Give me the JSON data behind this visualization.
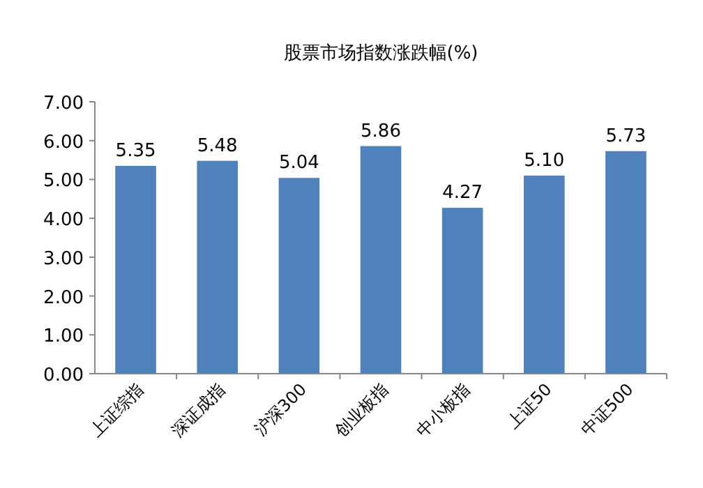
{
  "chart_data": {
    "type": "bar",
    "title": "股票市场指数涨跌幅(%)",
    "categories": [
      "上证综指",
      "深证成指",
      "沪深300",
      "创业板指",
      "中小板指",
      "上证50",
      "中证500"
    ],
    "values": [
      5.35,
      5.48,
      5.04,
      5.86,
      4.27,
      5.1,
      5.73
    ],
    "value_labels": [
      "5.35",
      "5.48",
      "5.04",
      "5.86",
      "4.27",
      "5.10",
      "5.73"
    ],
    "color": "#4f81bd",
    "ylim": [
      0,
      7
    ],
    "yticks": [
      {
        "value": 0,
        "label": "0.00"
      },
      {
        "value": 1,
        "label": "1.00"
      },
      {
        "value": 2,
        "label": "2.00"
      },
      {
        "value": 3,
        "label": "3.00"
      },
      {
        "value": 4,
        "label": "4.00"
      },
      {
        "value": 5,
        "label": "5.00"
      },
      {
        "value": 6,
        "label": "6.00"
      },
      {
        "value": 7,
        "label": "7.00"
      }
    ],
    "grid": false
  }
}
